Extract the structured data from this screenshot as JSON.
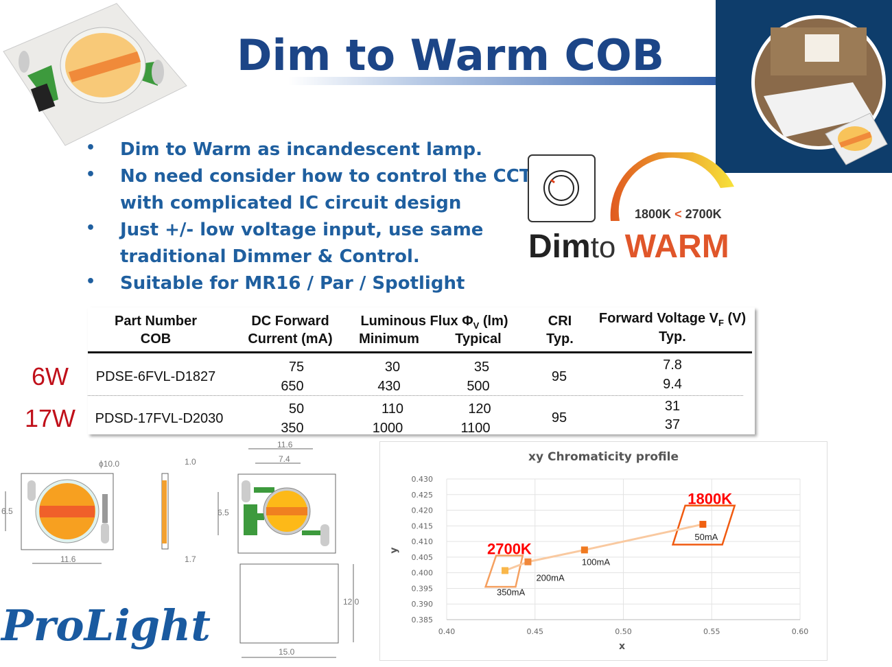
{
  "slide": {
    "title": "Dim to Warm COB",
    "bullets": [
      {
        "lines": [
          "Dim to Warm as incandescent lamp."
        ]
      },
      {
        "lines": [
          "No need consider how to control the CCT",
          "with complicated IC circuit design"
        ]
      },
      {
        "lines": [
          "Just +/-  low voltage input, use same",
          "traditional Dimmer & Control."
        ]
      },
      {
        "lines": [
          "Suitable for MR16 / Par / Spotlight"
        ]
      }
    ],
    "bullet_glyph": "•",
    "colors": {
      "title": "#1c4587",
      "bullets": "#1f5f9f",
      "warm": "#e0562a",
      "watt": "#c0101a"
    }
  },
  "logo_dim_to_warm": {
    "range_low": "1800K",
    "range_arrow": "<",
    "range_high": "2700K",
    "word_dim": "Dim",
    "word_to": "to",
    "word_warm": "WARM",
    "icon": "dimmer-knob-icon"
  },
  "table": {
    "headers": {
      "part_1": "Part Number",
      "part_2": "COB",
      "dc_1": "DC Forward",
      "dc_2": "Current (mA)",
      "flux_1": "Luminous Flux Φ",
      "flux_sub": "V",
      "flux_unit": " (lm)",
      "flux_min": "Minimum",
      "flux_typ": "Typical",
      "cri_1": "CRI",
      "cri_2": "Typ.",
      "vf_1": "Forward Voltage V",
      "vf_sub": "F",
      "vf_unit": " (V)",
      "vf_2": "Typ."
    },
    "rows": [
      {
        "watt": "6W",
        "part": "PDSE-6FVL-D1827",
        "current": [
          "75",
          "650"
        ],
        "flux_min": [
          "30",
          "430"
        ],
        "flux_typ": [
          "35",
          "500"
        ],
        "cri": "95",
        "vf": [
          "7.8",
          "9.4"
        ]
      },
      {
        "watt": "17W",
        "part": "PDSD-17FVL-D2030",
        "current": [
          "50",
          "350"
        ],
        "flux_min": [
          "110",
          "1000"
        ],
        "flux_typ": [
          "120",
          "1100"
        ],
        "cri": "95",
        "vf": [
          "31",
          "37"
        ]
      }
    ]
  },
  "drawing": {
    "diameter": "ϕ10.0",
    "width_a": "11.6",
    "height_a": "6.5",
    "thick_1": "1.0",
    "thick_2": "1.7",
    "width_b": "11.6",
    "inner_b": "7.4",
    "height_b": "6.5",
    "outline_h": "12.0",
    "outline_w": "15.0"
  },
  "brand_logo": "ProLight",
  "chart_data": {
    "type": "scatter",
    "title": "xy Chromaticity profile",
    "xlabel": "x",
    "ylabel": "y",
    "xlim": [
      0.4,
      0.6
    ],
    "ylim": [
      0.385,
      0.43
    ],
    "xticks": [
      "0.40",
      "0.45",
      "0.50",
      "0.55",
      "0.60"
    ],
    "yticks": [
      "0.430",
      "0.425",
      "0.420",
      "0.415",
      "0.410",
      "0.405",
      "0.400",
      "0.395",
      "0.390",
      "0.385"
    ],
    "grid": true,
    "points": [
      {
        "label": "350mA",
        "x": 0.433,
        "y": 0.4007,
        "color": "#f9b74a"
      },
      {
        "label": "200mA",
        "x": 0.446,
        "y": 0.4035,
        "color": "#f0873a"
      },
      {
        "label": "100mA",
        "x": 0.478,
        "y": 0.4073,
        "color": "#f07a20"
      },
      {
        "label": "50mA",
        "x": 0.545,
        "y": 0.4155,
        "color": "#f06010"
      }
    ],
    "line_color": "#f9c9a0",
    "regions": [
      {
        "label": "2700K",
        "color": "#f5a060",
        "corners": [
          [
            0.428,
            0.4055
          ],
          [
            0.443,
            0.4055
          ],
          [
            0.439,
            0.3955
          ],
          [
            0.422,
            0.3955
          ]
        ]
      },
      {
        "label": "1800K",
        "color": "#f05a10",
        "corners": [
          [
            0.535,
            0.4215
          ],
          [
            0.563,
            0.4215
          ],
          [
            0.556,
            0.409
          ],
          [
            0.528,
            0.409
          ]
        ]
      }
    ],
    "region_label_color": "#ff0000"
  }
}
